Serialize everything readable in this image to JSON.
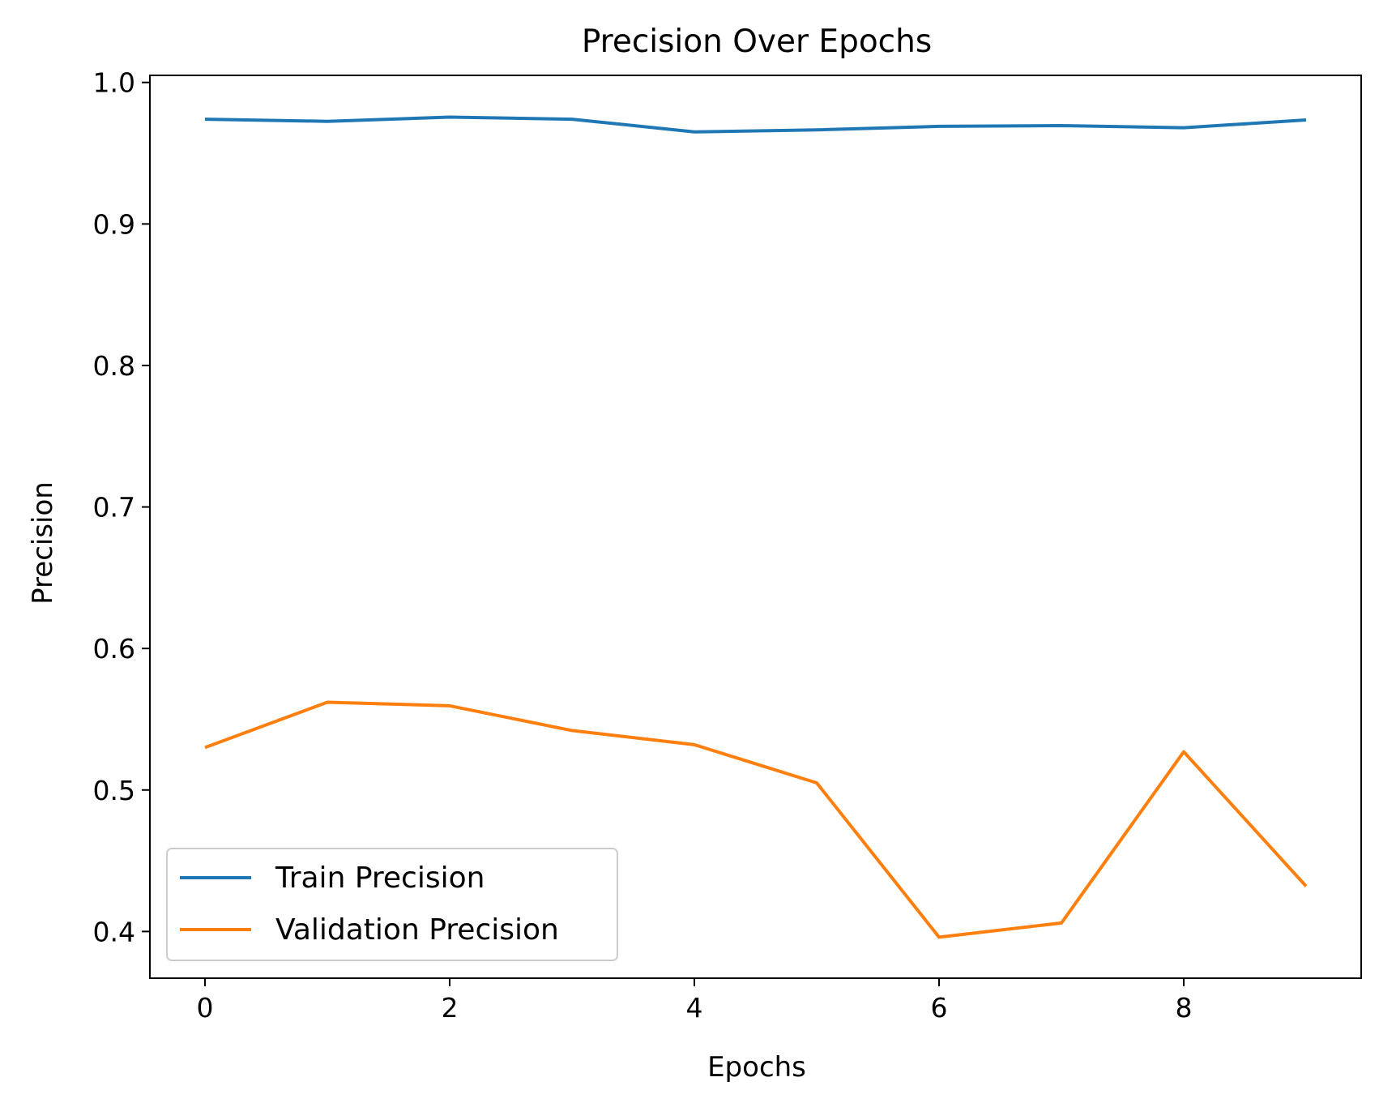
{
  "chart_data": {
    "type": "line",
    "title": "Precision Over Epochs",
    "xlabel": "Epochs",
    "ylabel": "Precision",
    "xlim": [
      -0.45,
      9.45
    ],
    "ylim": [
      0.367,
      1.005
    ],
    "xticks": [
      0,
      2,
      4,
      6,
      8
    ],
    "xtick_labels": [
      "0",
      "2",
      "4",
      "6",
      "8"
    ],
    "yticks": [
      0.4,
      0.5,
      0.6,
      0.7,
      0.8,
      0.9,
      1.0
    ],
    "ytick_labels": [
      "0.4",
      "0.5",
      "0.6",
      "0.7",
      "0.8",
      "0.9",
      "1.0"
    ],
    "grid": false,
    "legend_position": "lower-left",
    "x": [
      0,
      1,
      2,
      3,
      4,
      5,
      6,
      7,
      8,
      9
    ],
    "series": [
      {
        "name": "Train Precision",
        "color": "#1f77b4",
        "values": [
          0.974,
          0.9725,
          0.9755,
          0.974,
          0.965,
          0.9665,
          0.969,
          0.9695,
          0.968,
          0.9735
        ]
      },
      {
        "name": "Validation Precision",
        "color": "#ff7f0e",
        "values": [
          0.53,
          0.562,
          0.5595,
          0.542,
          0.532,
          0.505,
          0.396,
          0.406,
          0.527,
          0.432
        ]
      }
    ]
  }
}
